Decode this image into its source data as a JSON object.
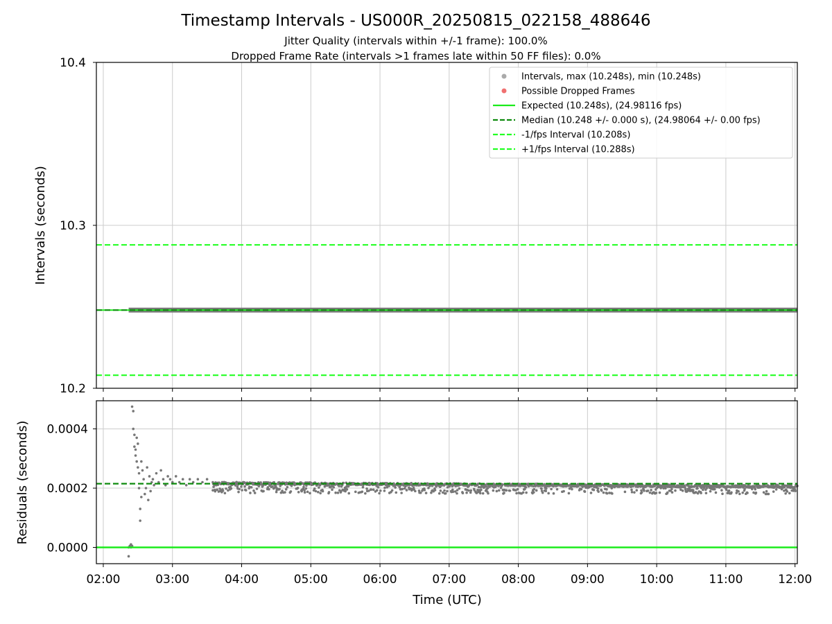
{
  "figure": {
    "title": "Timestamp Intervals - US000R_20250815_022158_488646",
    "subtitle1": "Jitter Quality (intervals within +/-1 frame): 100.0%",
    "subtitle2": "Dropped Frame Rate (intervals >1 frames late within 50 FF files): 0.0%"
  },
  "colors": {
    "points": "#777777",
    "points_legend": "#aaaaaa",
    "dropped": "#f07070",
    "expected": "#1aeb1a",
    "median": "#0c8a0c",
    "interval": "#22ff22",
    "grid": "#cccccc"
  },
  "chart_data": [
    {
      "type": "scatter",
      "name": "intervals",
      "ylabel": "Intervals (seconds)",
      "xlabel": "",
      "xlim": [
        "01:54",
        "12:02"
      ],
      "ylim": [
        10.2,
        10.4
      ],
      "yticks": [
        "10.2",
        "10.3",
        "10.4"
      ],
      "grid": true,
      "legend_position": "top-right",
      "legend": [
        "Intervals, max (10.248s), min (10.248s)",
        "Possible Dropped Frames",
        "Expected (10.248s), (24.98116 fps)",
        "Median (10.248 +/- 0.000 s), (24.98064 +/- 0.00 fps)",
        "-1/fps Interval (10.208s)",
        "+1/fps Interval (10.288s)"
      ],
      "series": [
        {
          "name": "Intervals, max (10.248s), min (10.248s)",
          "x_range": [
            "02:22",
            "12:02"
          ],
          "y": 10.248
        },
        {
          "name": "Expected (10.248s), (24.98116 fps)",
          "y": 10.248
        },
        {
          "name": "Median (10.248 +/- 0.000 s), (24.98064 +/- 0.00 fps)",
          "y": 10.248
        },
        {
          "name": "-1/fps Interval (10.208s)",
          "y": 10.208
        },
        {
          "name": "+1/fps Interval (10.288s)",
          "y": 10.288
        }
      ]
    },
    {
      "type": "scatter",
      "name": "residuals",
      "ylabel": "Residuals (seconds)",
      "xlabel": "Time (UTC)",
      "xlim": [
        "01:54",
        "12:02"
      ],
      "ylim": [
        -5.5e-05,
        0.000495
      ],
      "yticks": [
        "0.0000",
        "0.0002",
        "0.0004"
      ],
      "xticks": [
        "02:00",
        "03:00",
        "04:00",
        "05:00",
        "06:00",
        "07:00",
        "08:00",
        "09:00",
        "10:00",
        "11:00",
        "12:00"
      ],
      "grid": true,
      "median_residual": 0.000215,
      "expected_residual": 0.0,
      "points": [
        [
          "02:22",
          0.0
        ],
        [
          "02:22",
          -3e-05
        ],
        [
          "02:23",
          5e-06
        ],
        [
          "02:24",
          0.0
        ],
        [
          "02:24",
          1e-05
        ],
        [
          "02:25",
          5e-06
        ],
        [
          "02:25",
          0.000475
        ],
        [
          "02:26",
          0.00046
        ],
        [
          "02:26",
          0.0004
        ],
        [
          "02:27",
          0.00038
        ],
        [
          "02:27",
          0.00034
        ],
        [
          "02:28",
          0.00033
        ],
        [
          "02:28",
          0.00031
        ],
        [
          "02:29",
          0.00029
        ],
        [
          "02:29",
          0.00037
        ],
        [
          "02:30",
          0.00035
        ],
        [
          "02:30",
          0.00027
        ],
        [
          "02:31",
          0.00025
        ],
        [
          "02:31",
          0.0002
        ],
        [
          "02:32",
          9e-05
        ],
        [
          "02:32",
          0.00013
        ],
        [
          "02:33",
          0.00017
        ],
        [
          "02:33",
          0.00029
        ],
        [
          "02:34",
          0.00026
        ],
        [
          "02:35",
          0.00023
        ],
        [
          "02:36",
          0.00018
        ],
        [
          "02:37",
          0.0002
        ],
        [
          "02:38",
          0.00027
        ],
        [
          "02:39",
          0.00016
        ],
        [
          "02:40",
          0.00024
        ],
        [
          "02:41",
          0.00019
        ],
        [
          "02:42",
          0.00022
        ],
        [
          "02:43",
          0.00023
        ],
        [
          "02:44",
          0.00021
        ],
        [
          "02:46",
          0.00025
        ],
        [
          "02:48",
          0.00022
        ],
        [
          "02:50",
          0.00026
        ],
        [
          "02:52",
          0.00023
        ],
        [
          "02:54",
          0.00021
        ],
        [
          "02:56",
          0.00024
        ],
        [
          "02:58",
          0.00023
        ],
        [
          "03:00",
          0.00022
        ],
        [
          "03:03",
          0.00024
        ],
        [
          "03:06",
          0.00022
        ],
        [
          "03:09",
          0.00023
        ],
        [
          "03:12",
          0.00021
        ],
        [
          "03:15",
          0.00023
        ],
        [
          "03:18",
          0.00022
        ],
        [
          "03:22",
          0.00023
        ],
        [
          "03:26",
          0.00022
        ],
        [
          "03:30",
          0.00023
        ],
        [
          "03:35",
          0.00022
        ]
      ]
    }
  ]
}
